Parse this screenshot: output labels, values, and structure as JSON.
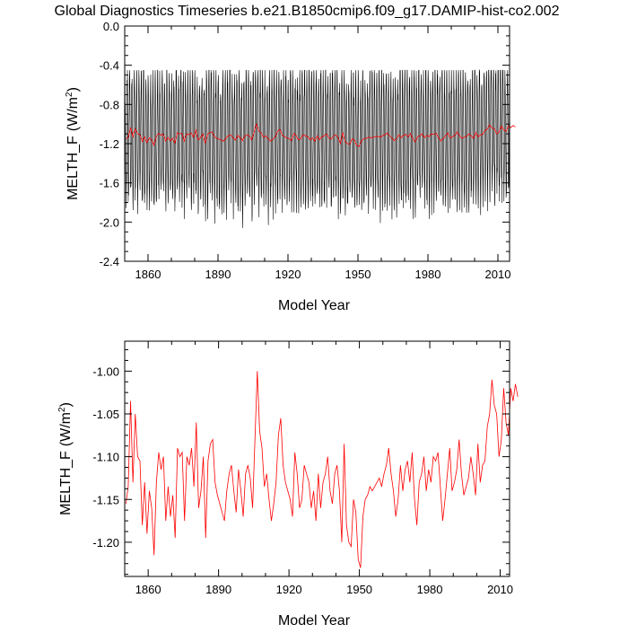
{
  "title": "Global Diagnostics Timeseries b.e21.B1850cmip6.f09_g17.DAMIP-hist-co2.002",
  "chart_data": [
    {
      "type": "line",
      "panel": "top",
      "xlabel": "Model Year",
      "ylabel": "MELTH_F",
      "yunit_prefix": "(W/m",
      "yunit_exp": "2",
      "yunit_suffix": ")",
      "xlim": [
        1850,
        2015
      ],
      "ylim": [
        -2.4,
        0.0
      ],
      "xticks": [
        1860,
        1890,
        1920,
        1950,
        1980,
        2010
      ],
      "xtick_labels": [
        "1860",
        "1890",
        "1920",
        "1950",
        "1980",
        "2010"
      ],
      "yticks": [
        0.0,
        -0.4,
        -0.8,
        -1.2,
        -1.6,
        -2.0,
        -2.4
      ],
      "ytick_labels": [
        "0.0",
        "-0.4",
        "-0.8",
        "-1.2",
        "-1.6",
        "-2.0",
        "-2.4"
      ],
      "grid": false,
      "series": [
        {
          "kind": "monthly",
          "color": "#000000",
          "start_year": 1850,
          "end_year": 2015,
          "initial_value": 0.0,
          "annual_max": -0.5,
          "annual_min": -2.1
        },
        {
          "kind": "annual_mean",
          "color": "#ff0000"
        }
      ]
    },
    {
      "type": "line",
      "panel": "bottom",
      "xlabel": "Model Year",
      "ylabel": "MELTH_F",
      "yunit_prefix": "(W/m",
      "yunit_exp": "2",
      "yunit_suffix": ")",
      "xlim": [
        1850,
        2014
      ],
      "ylim": [
        -1.24,
        -0.965
      ],
      "xticks": [
        1860,
        1890,
        1920,
        1950,
        1980,
        2010
      ],
      "xtick_labels": [
        "1860",
        "1890",
        "1920",
        "1950",
        "1980",
        "2010"
      ],
      "yticks": [
        -1.0,
        -1.05,
        -1.1,
        -1.15,
        -1.2
      ],
      "ytick_labels": [
        "-1.00",
        "-1.05",
        "-1.10",
        "-1.15",
        "-1.20"
      ],
      "grid": false,
      "series": [
        {
          "kind": "annual_mean",
          "color": "#ff0000",
          "x_start": 1850,
          "values": [
            -1.155,
            -1.135,
            -1.035,
            -1.13,
            -1.05,
            -1.1,
            -1.105,
            -1.18,
            -1.13,
            -1.19,
            -1.14,
            -1.16,
            -1.215,
            -1.13,
            -1.095,
            -1.115,
            -1.1,
            -1.175,
            -1.135,
            -1.17,
            -1.145,
            -1.195,
            -1.09,
            -1.1,
            -1.095,
            -1.175,
            -1.1,
            -1.11,
            -1.09,
            -1.135,
            -1.06,
            -1.16,
            -1.14,
            -1.1,
            -1.195,
            -1.105,
            -1.085,
            -1.08,
            -1.13,
            -1.145,
            -1.155,
            -1.165,
            -1.175,
            -1.14,
            -1.12,
            -1.11,
            -1.14,
            -1.165,
            -1.115,
            -1.14,
            -1.17,
            -1.12,
            -1.11,
            -1.125,
            -1.16,
            -1.08,
            -1.0,
            -1.07,
            -1.09,
            -1.135,
            -1.12,
            -1.15,
            -1.175,
            -1.155,
            -1.13,
            -1.075,
            -1.055,
            -1.11,
            -1.13,
            -1.14,
            -1.15,
            -1.17,
            -1.095,
            -1.12,
            -1.16,
            -1.15,
            -1.11,
            -1.12,
            -1.13,
            -1.16,
            -1.14,
            -1.175,
            -1.12,
            -1.16,
            -1.13,
            -1.12,
            -1.1,
            -1.14,
            -1.155,
            -1.12,
            -1.11,
            -1.14,
            -1.2,
            -1.085,
            -1.18,
            -1.2,
            -1.205,
            -1.15,
            -1.165,
            -1.22,
            -1.23,
            -1.17,
            -1.15,
            -1.145,
            -1.135,
            -1.14,
            -1.135,
            -1.13,
            -1.125,
            -1.135,
            -1.12,
            -1.11,
            -1.09,
            -1.12,
            -1.14,
            -1.17,
            -1.15,
            -1.11,
            -1.14,
            -1.115,
            -1.105,
            -1.13,
            -1.095,
            -1.15,
            -1.18,
            -1.13,
            -1.12,
            -1.1,
            -1.14,
            -1.115,
            -1.13,
            -1.1,
            -1.105,
            -1.095,
            -1.135,
            -1.175,
            -1.15,
            -1.12,
            -1.09,
            -1.14,
            -1.13,
            -1.115,
            -1.08,
            -1.12,
            -1.145,
            -1.135,
            -1.125,
            -1.1,
            -1.12,
            -1.145,
            -1.085,
            -1.13,
            -1.11,
            -1.105,
            -1.065,
            -1.05,
            -1.01,
            -1.04,
            -1.05,
            -1.1,
            -1.08,
            -1.02,
            -1.06,
            -1.075,
            -1.02,
            -1.035,
            -1.015,
            -1.03
          ]
        }
      ]
    }
  ]
}
